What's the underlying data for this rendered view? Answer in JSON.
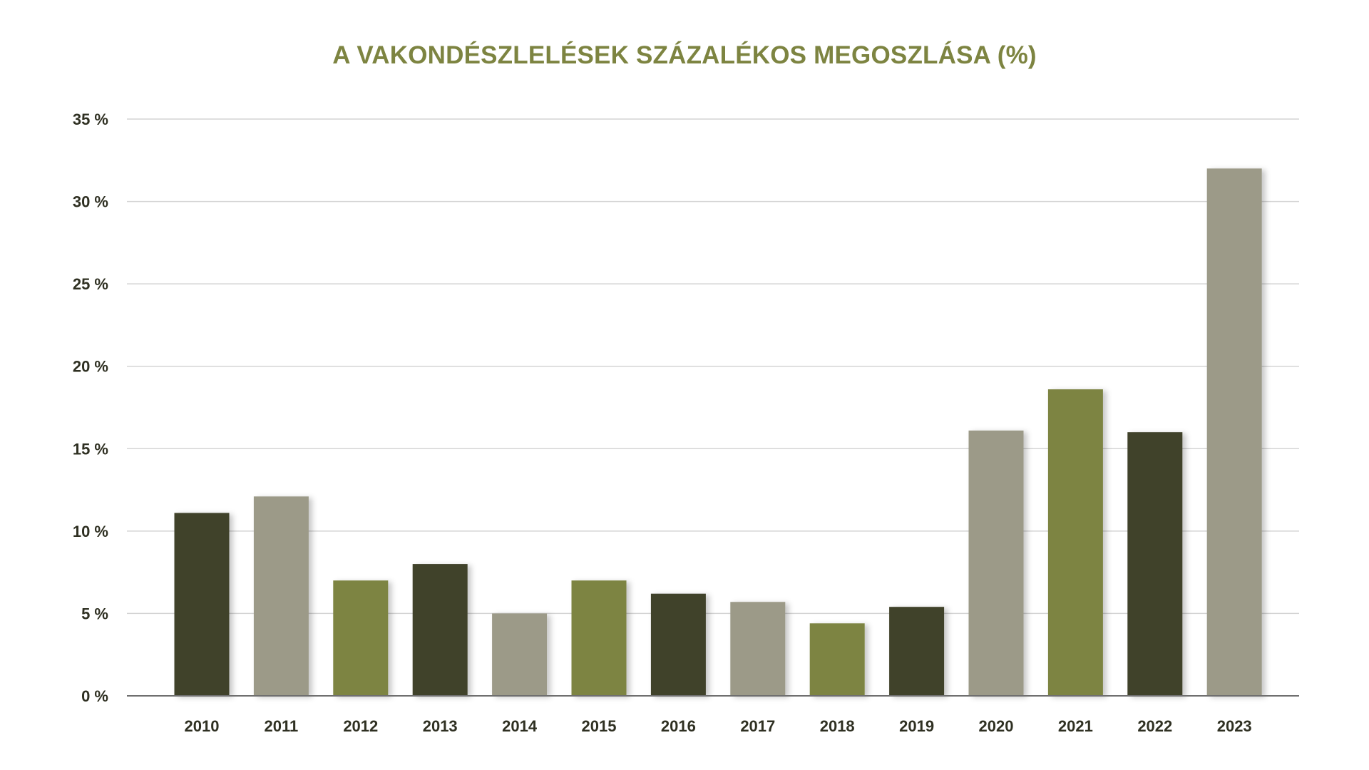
{
  "chart_data": {
    "type": "bar",
    "title": "A VAKONDÉSZLELÉSEK SZÁZALÉKOS MEGOSZLÁSA (%)",
    "xlabel": "",
    "ylabel": "",
    "categories": [
      "2010",
      "2011",
      "2012",
      "2013",
      "2014",
      "2015",
      "2016",
      "2017",
      "2018",
      "2019",
      "2020",
      "2021",
      "2022",
      "2023"
    ],
    "values": [
      11.1,
      12.1,
      7.0,
      8.0,
      5.0,
      7.0,
      6.2,
      5.7,
      4.4,
      5.4,
      16.1,
      18.6,
      16.0,
      32.0
    ],
    "ylim": [
      0,
      35
    ],
    "yticks": [
      0,
      5,
      10,
      15,
      20,
      25,
      30,
      35
    ],
    "ytick_labels": [
      "0 %",
      "5 %",
      "10 %",
      "15 %",
      "20 %",
      "25 %",
      "30 %",
      "35 %"
    ],
    "grid": true,
    "legend": "none",
    "colors": {
      "title": "#7d8441",
      "dark": "#41422a",
      "gray": "#9c9a88",
      "olive": "#7d8443",
      "grid": "#d4d4d4",
      "axis": "#6f6f6f",
      "tick_text": "#2f3022"
    },
    "bar_colors": [
      "dark",
      "gray",
      "olive",
      "dark",
      "gray",
      "olive",
      "dark",
      "gray",
      "olive",
      "dark",
      "gray",
      "olive",
      "dark",
      "gray"
    ]
  }
}
